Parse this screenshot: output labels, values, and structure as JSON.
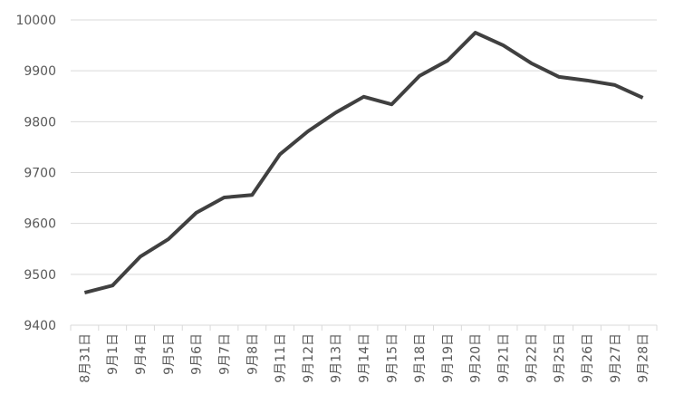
{
  "chart_data": {
    "type": "line",
    "categories": [
      "8月31日",
      "9月1日",
      "9月4日",
      "9月5日",
      "9月6日",
      "9月7日",
      "9月8日",
      "9月11日",
      "9月12日",
      "9月13日",
      "9月14日",
      "9月15日",
      "9月18日",
      "9月19日",
      "9月20日",
      "9月21日",
      "9月22日",
      "9月25日",
      "9月26日",
      "9月27日",
      "9月28日"
    ],
    "values": [
      9464,
      9478,
      9535,
      9569,
      9621,
      9651,
      9656,
      9736,
      9781,
      9818,
      9849,
      9834,
      9890,
      9920,
      9975,
      9950,
      9915,
      9888,
      9881,
      9872,
      9847
    ],
    "color": "#404040",
    "ylim": [
      9400,
      10000
    ],
    "yticks": [
      9400,
      9500,
      9600,
      9700,
      9800,
      9900,
      10000
    ],
    "grid": true
  }
}
